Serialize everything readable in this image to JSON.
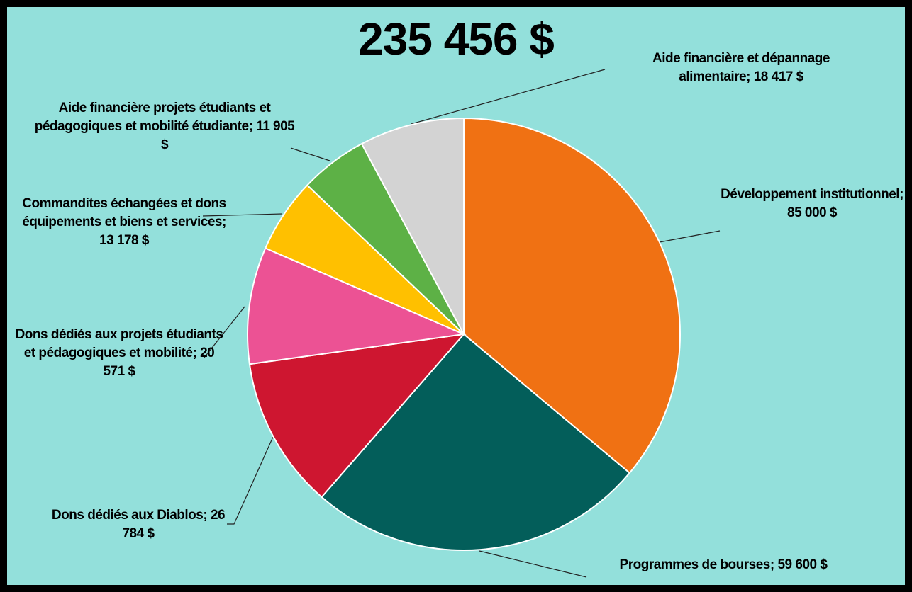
{
  "chart_data": {
    "type": "pie",
    "title": "235 456 $",
    "categories": [
      "Développement institutionnel;",
      "Programmes de bourses;",
      "Dons dédiés aux Diablos;",
      "Dons dédiés aux projets étudiants et pédagogiques et mobilité;",
      "Commandites échangées et dons équipements et biens et services;",
      "Aide financière projets étudiants et pédagogiques et mobilité étudiante;",
      "Aide financière et dépannage alimentaire;"
    ],
    "values": [
      85000,
      59600,
      26784,
      20571,
      13178,
      11905,
      18417
    ],
    "value_labels": [
      "85 000 $",
      "59 600 $",
      "26 784 $",
      "20 571 $",
      "13 178 $",
      "11 905 $",
      "18 417 $"
    ],
    "colors": [
      "#F07113",
      "#035E5A",
      "#CE1630",
      "#EC5294",
      "#FFC000",
      "#5DB146",
      "#D3D3D3"
    ]
  }
}
